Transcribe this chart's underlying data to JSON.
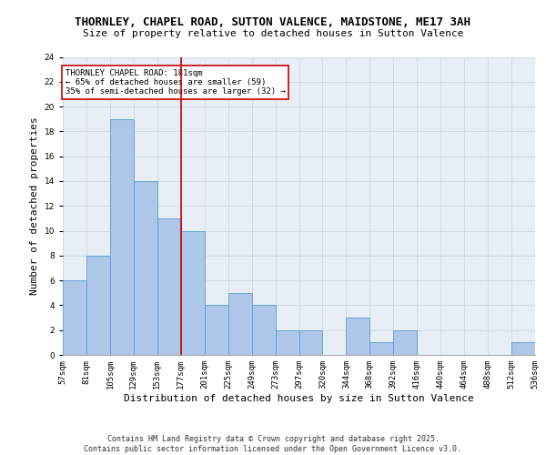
{
  "title_line1": "THORNLEY, CHAPEL ROAD, SUTTON VALENCE, MAIDSTONE, ME17 3AH",
  "title_line2": "Size of property relative to detached houses in Sutton Valence",
  "xlabel": "Distribution of detached houses by size in Sutton Valence",
  "ylabel": "Number of detached properties",
  "bar_values": [
    6,
    8,
    19,
    14,
    11,
    10,
    4,
    5,
    4,
    2,
    2,
    0,
    3,
    1,
    2,
    0,
    0,
    0,
    0,
    1
  ],
  "categories": [
    "57sqm",
    "81sqm",
    "105sqm",
    "129sqm",
    "153sqm",
    "177sqm",
    "201sqm",
    "225sqm",
    "249sqm",
    "273sqm",
    "297sqm",
    "320sqm",
    "344sqm",
    "368sqm",
    "392sqm",
    "416sqm",
    "440sqm",
    "464sqm",
    "488sqm",
    "512sqm",
    "536sqm"
  ],
  "bar_color": "#aec6e8",
  "bar_edge_color": "#5a9fd4",
  "grid_color": "#d0dce8",
  "background_color": "#e8eef5",
  "vline_color": "#cc0000",
  "annotation_text": "THORNLEY CHAPEL ROAD: 181sqm\n← 65% of detached houses are smaller (59)\n35% of semi-detached houses are larger (32) →",
  "annotation_box_color": "#ffffff",
  "annotation_box_edge": "#cc0000",
  "ylim": [
    0,
    24
  ],
  "yticks": [
    0,
    2,
    4,
    6,
    8,
    10,
    12,
    14,
    16,
    18,
    20,
    22,
    24
  ],
  "footer_text": "Contains HM Land Registry data © Crown copyright and database right 2025.\nContains public sector information licensed under the Open Government Licence v3.0.",
  "title_fontsize": 9,
  "subtitle_fontsize": 8,
  "axis_label_fontsize": 8,
  "tick_fontsize": 6.5,
  "annotation_fontsize": 6.5,
  "footer_fontsize": 6
}
